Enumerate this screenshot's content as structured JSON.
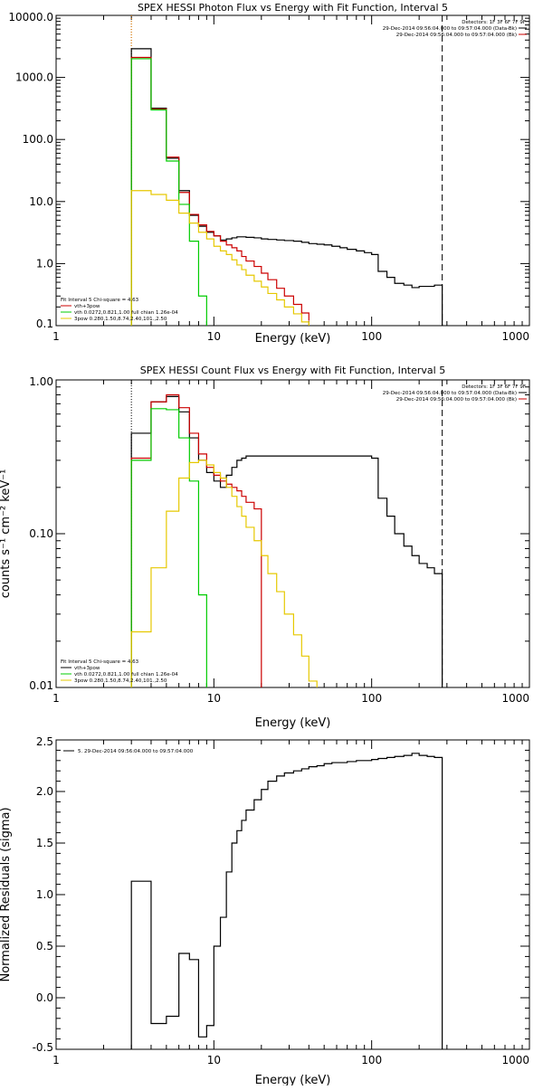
{
  "chart_data": [
    {
      "id": "photon",
      "type": "line",
      "title": "SPEX HESSI Photon Flux vs Energy with Fit Function, Interval 5",
      "xlabel": "Energy (keV)",
      "ylabel": "",
      "xscale": "log",
      "yscale": "log",
      "xlim": [
        1,
        1000
      ],
      "ylim": [
        0.1,
        10000
      ],
      "xticks": [
        {
          "v": 1,
          "label": "1"
        },
        {
          "v": 10,
          "label": "10"
        },
        {
          "v": 100,
          "label": "100"
        },
        {
          "v": 1000,
          "label": "1000"
        }
      ],
      "yticks": [
        {
          "v": 0.1,
          "label": "0.1"
        },
        {
          "v": 1,
          "label": "1.0"
        },
        {
          "v": 10,
          "label": "10.0"
        },
        {
          "v": 100,
          "label": "100.0"
        },
        {
          "v": 1000,
          "label": "1000.0"
        },
        {
          "v": 10000,
          "label": "10000.0"
        }
      ],
      "vlines": [
        {
          "x": 3,
          "style": "dotted",
          "color": "#000000"
        },
        {
          "x": 3,
          "style": "dotted",
          "color": "#ff8c00"
        },
        {
          "x": 280,
          "style": "dashed",
          "color": "#000000"
        }
      ],
      "legend_top": {
        "placement": "top-right",
        "lines": [
          {
            "text": "Detectors: 1F 3F 6F 7F 9F",
            "color": ""
          },
          {
            "text": "29-Dec-2014 09:56:04.000 to 09:57:04.000 (Data-Bk)",
            "color": "#000000"
          },
          {
            "text": "29-Dec-2014 09:56:04.000 to 09:57:04.000 (Bk)",
            "color": "#cc0000"
          }
        ]
      },
      "legend_bottom": {
        "placement": "bottom-left",
        "lines": [
          {
            "text": "Fit Interval 5   Chi-square = 4.63",
            "color": ""
          },
          {
            "text": "vth+3pow",
            "color": "#cc0000"
          },
          {
            "text": "vth 0.0272,0.821,1.00  full chian 1.26e-04",
            "color": "#00cc00"
          },
          {
            "text": "3pow 0.280,1.50,8.74,2.40,101.,2.50",
            "color": "#e6c800"
          }
        ]
      },
      "series": [
        {
          "color": "#000000",
          "edges": [
            3,
            4,
            5,
            6,
            7,
            8,
            9,
            10,
            11,
            12,
            13,
            14,
            15,
            16,
            18,
            20,
            22,
            25,
            28,
            32,
            36,
            40,
            45,
            50,
            56,
            63,
            70,
            80,
            90,
            100,
            110,
            125,
            140,
            160,
            180,
            200,
            225,
            250,
            280
          ],
          "values": [
            2900,
            320,
            50,
            15,
            6,
            4,
            3.2,
            2.8,
            2.4,
            2.5,
            2.6,
            2.7,
            2.7,
            2.65,
            2.6,
            2.5,
            2.45,
            2.4,
            2.35,
            2.3,
            2.2,
            2.1,
            2.05,
            2.0,
            1.9,
            1.8,
            1.7,
            1.6,
            1.5,
            1.4,
            0.75,
            0.6,
            0.48,
            0.45,
            0.41,
            0.43,
            0.43,
            0.45
          ]
        },
        {
          "color": "#cc0000",
          "edges": [
            3,
            4,
            5,
            6,
            7,
            8,
            9,
            10,
            11,
            12,
            13,
            14,
            15,
            16,
            18,
            20,
            22,
            25,
            28,
            32,
            36,
            40
          ],
          "values": [
            2100,
            310,
            52,
            14,
            6.2,
            4.2,
            3.3,
            2.8,
            2.3,
            2.0,
            1.8,
            1.6,
            1.3,
            1.1,
            0.9,
            0.7,
            0.55,
            0.4,
            0.3,
            0.22,
            0.16,
            0.12
          ]
        },
        {
          "color": "#00cc00",
          "edges": [
            3,
            4,
            5,
            6,
            7,
            8,
            9
          ],
          "values": [
            2000,
            300,
            45,
            9,
            2.3,
            0.3
          ]
        },
        {
          "color": "#e6c800",
          "edges": [
            3,
            4,
            5,
            6,
            7,
            8,
            9,
            10,
            11,
            12,
            13,
            14,
            15,
            16,
            18,
            20,
            22,
            25,
            28,
            32,
            36,
            40
          ],
          "values": [
            15,
            13,
            10.5,
            6.5,
            4.5,
            3.2,
            2.5,
            1.9,
            1.6,
            1.4,
            1.15,
            0.95,
            0.8,
            0.65,
            0.52,
            0.42,
            0.33,
            0.26,
            0.2,
            0.155,
            0.115,
            0.1
          ]
        }
      ]
    },
    {
      "id": "count",
      "type": "line",
      "title": "SPEX HESSI Count Flux vs Energy with Fit Function, Interval 5",
      "xlabel": "Energy (keV)",
      "ylabel": "counts s⁻¹ cm⁻² keV⁻¹",
      "xscale": "log",
      "yscale": "log",
      "xlim": [
        1,
        1000
      ],
      "ylim": [
        0.01,
        1
      ],
      "xticks": [
        {
          "v": 1,
          "label": "1"
        },
        {
          "v": 10,
          "label": "10"
        },
        {
          "v": 100,
          "label": "100"
        },
        {
          "v": 1000,
          "label": "1000"
        }
      ],
      "yticks": [
        {
          "v": 0.01,
          "label": "0.01"
        },
        {
          "v": 0.1,
          "label": "0.10"
        },
        {
          "v": 1,
          "label": "1.00"
        }
      ],
      "vlines": [
        {
          "x": 3,
          "style": "dotted",
          "color": "#000000"
        },
        {
          "x": 280,
          "style": "dashed",
          "color": "#000000"
        }
      ],
      "legend_top": {
        "placement": "top-right",
        "lines": [
          {
            "text": "Detectors: 1F 3F 6F 7F 9F",
            "color": ""
          },
          {
            "text": "29-Dec-2014 09:56:04.000 to 09:57:04.000 (Data-Bk)",
            "color": "#000000"
          },
          {
            "text": "29-Dec-2014 09:56:04.000 to 09:57:04.000 (Bk)",
            "color": "#cc0000"
          }
        ]
      },
      "legend_bottom": {
        "placement": "bottom-left",
        "lines": [
          {
            "text": "Fit Interval 5   Chi-square = 4.63",
            "color": ""
          },
          {
            "text": "vth+3pow",
            "color": "#000000"
          },
          {
            "text": "vth 0.0272,0.821,1.00  full chian 1.26e-04",
            "color": "#00cc00"
          },
          {
            "text": "3pow 0.280,1.50,8.74,2.40,101.,2.50",
            "color": "#e6c800"
          }
        ]
      },
      "series": [
        {
          "color": "#000000",
          "edges": [
            3,
            4,
            5,
            6,
            7,
            8,
            9,
            10,
            11,
            12,
            13,
            14,
            15,
            16,
            18,
            20,
            22,
            25,
            28,
            32,
            36,
            40,
            45,
            50,
            56,
            63,
            70,
            80,
            90,
            100,
            110,
            125,
            140,
            160,
            180,
            200,
            225,
            250,
            280
          ],
          "values": [
            0.45,
            0.72,
            0.78,
            0.62,
            0.42,
            0.3,
            0.25,
            0.22,
            0.2,
            0.24,
            0.27,
            0.3,
            0.31,
            0.32,
            0.32,
            0.32,
            0.32,
            0.32,
            0.32,
            0.32,
            0.32,
            0.32,
            0.32,
            0.32,
            0.32,
            0.32,
            0.32,
            0.32,
            0.32,
            0.31,
            0.17,
            0.13,
            0.1,
            0.083,
            0.072,
            0.064,
            0.06,
            0.055
          ]
        },
        {
          "color": "#cc0000",
          "edges": [
            3,
            4,
            5,
            6,
            7,
            8,
            9,
            10,
            11,
            12,
            13,
            14,
            15,
            16,
            18,
            20
          ],
          "values": [
            0.31,
            0.72,
            0.8,
            0.66,
            0.45,
            0.33,
            0.27,
            0.24,
            0.22,
            0.21,
            0.2,
            0.19,
            0.175,
            0.16,
            0.145
          ]
        },
        {
          "color": "#00cc00",
          "edges": [
            3,
            4,
            5,
            6,
            7,
            8,
            9
          ],
          "values": [
            0.3,
            0.65,
            0.64,
            0.42,
            0.22,
            0.04
          ]
        },
        {
          "color": "#e6c800",
          "edges": [
            3,
            4,
            5,
            6,
            7,
            8,
            9,
            10,
            11,
            12,
            13,
            14,
            15,
            16,
            18,
            20,
            22,
            25,
            28,
            32,
            36,
            40,
            45
          ],
          "values": [
            0.023,
            0.06,
            0.14,
            0.23,
            0.29,
            0.3,
            0.28,
            0.25,
            0.23,
            0.2,
            0.175,
            0.15,
            0.13,
            0.11,
            0.09,
            0.072,
            0.055,
            0.042,
            0.03,
            0.022,
            0.016,
            0.011
          ]
        }
      ]
    },
    {
      "id": "resid",
      "type": "line",
      "title": "",
      "xlabel": "Energy (keV)",
      "ylabel": "Normalized Residuals (sigma)",
      "xscale": "log",
      "yscale": "linear",
      "xlim": [
        1,
        1000
      ],
      "ylim": [
        -0.5,
        2.5
      ],
      "xticks": [
        {
          "v": 1,
          "label": "1"
        },
        {
          "v": 10,
          "label": "10"
        },
        {
          "v": 100,
          "label": "100"
        },
        {
          "v": 1000,
          "label": "1000"
        }
      ],
      "yticks": [
        {
          "v": -0.5,
          "label": "-0.5"
        },
        {
          "v": 0,
          "label": "0.0"
        },
        {
          "v": 0.5,
          "label": "0.5"
        },
        {
          "v": 1,
          "label": "1.0"
        },
        {
          "v": 1.5,
          "label": "1.5"
        },
        {
          "v": 2,
          "label": "2.0"
        },
        {
          "v": 2.5,
          "label": "2.5"
        }
      ],
      "vlines": [],
      "legend_top": {
        "placement": "top-left",
        "lines": [
          {
            "text": "5. 29-Dec-2014 09:56:04.000 to 09:57:04.000",
            "color": "#000000"
          }
        ]
      },
      "legend_bottom": {
        "placement": "bottom-left",
        "lines": []
      },
      "series": [
        {
          "color": "#000000",
          "edges": [
            3,
            4,
            5,
            6,
            7,
            8,
            9,
            10,
            11,
            12,
            13,
            14,
            15,
            16,
            18,
            20,
            22,
            25,
            28,
            32,
            36,
            40,
            45,
            50,
            56,
            63,
            70,
            80,
            90,
            100,
            110,
            125,
            140,
            160,
            180,
            200,
            225,
            250,
            280
          ],
          "values": [
            1.13,
            -0.25,
            -0.18,
            0.43,
            0.37,
            -0.38,
            -0.27,
            0.5,
            0.78,
            1.22,
            1.5,
            1.62,
            1.72,
            1.82,
            1.92,
            2.02,
            2.1,
            2.15,
            2.18,
            2.2,
            2.22,
            2.24,
            2.25,
            2.27,
            2.28,
            2.28,
            2.29,
            2.3,
            2.3,
            2.31,
            2.32,
            2.33,
            2.34,
            2.35,
            2.37,
            2.35,
            2.34,
            2.33
          ]
        }
      ]
    }
  ]
}
